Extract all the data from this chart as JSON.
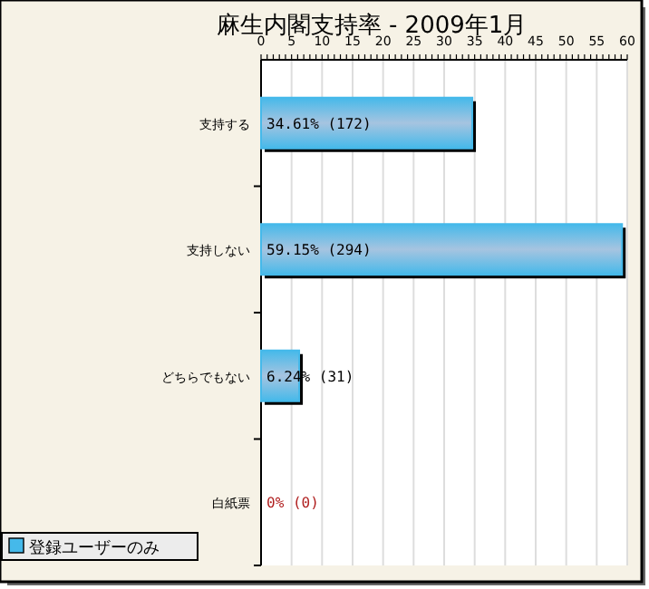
{
  "chart_data": {
    "type": "bar",
    "orientation": "horizontal",
    "title": "麻生内閣支持率 - 2009年1月",
    "categories": [
      "支持する",
      "支持しない",
      "どちらでもない",
      "白紙票"
    ],
    "series": [
      {
        "name": "登録ユーザーのみ",
        "color": "#45b9ea",
        "values": [
          34.61,
          59.15,
          6.24,
          0
        ],
        "value_labels": [
          "34.61% (172)",
          "59.15% (294)",
          "6.24% (31)",
          "0% (0)"
        ]
      }
    ],
    "xlim": [
      0,
      60
    ],
    "xticks": [
      0,
      5,
      10,
      15,
      20,
      25,
      30,
      35,
      40,
      45,
      50,
      55,
      60
    ],
    "grid": "x",
    "legend": "bottom left"
  }
}
